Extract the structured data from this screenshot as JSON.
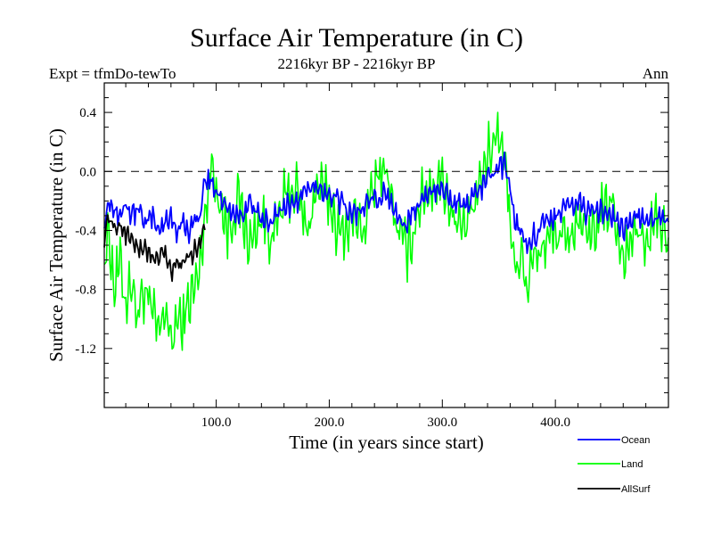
{
  "header": {
    "title": "Surface Air Temperature (in C)",
    "subtitle": "2216kyr BP - 2216kyr BP",
    "expt": "Expt = tfmDo-tewTo",
    "season": "Ann"
  },
  "chart_data": {
    "type": "line",
    "title": "Surface Air Temperature (in C)",
    "xlabel": "Time (in years since start)",
    "ylabel": "Surface Air Temperature (in C)",
    "xlim": [
      1,
      500
    ],
    "ylim": [
      -1.6,
      0.6
    ],
    "x_ticks": [
      100,
      200,
      300,
      400
    ],
    "x_tick_labels": [
      "100.0",
      "200.0",
      "300.0",
      "400.0"
    ],
    "y_ticks": [
      0.4,
      0.0,
      -0.4,
      -0.8,
      -1.2
    ],
    "y_tick_labels": [
      "0.4",
      "0.0",
      "-0.4",
      "-0.8",
      "-1.2"
    ],
    "reference_line": 0.0,
    "legend_position": "bottom-right, below plot",
    "series": [
      {
        "name": "Ocean",
        "color": "#0000ff",
        "x": [
          1,
          5,
          10,
          15,
          20,
          25,
          30,
          35,
          40,
          45,
          50,
          55,
          60,
          65,
          70,
          75,
          80,
          85,
          90,
          95,
          100,
          110,
          120,
          130,
          140,
          150,
          160,
          170,
          180,
          190,
          200,
          210,
          220,
          230,
          240,
          250,
          260,
          270,
          280,
          290,
          300,
          310,
          320,
          330,
          340,
          350,
          355,
          360,
          365,
          370,
          375,
          380,
          390,
          400,
          410,
          420,
          430,
          440,
          450,
          460,
          470,
          480,
          490,
          500
        ],
        "values": [
          -0.35,
          -0.2,
          -0.25,
          -0.3,
          -0.2,
          -0.3,
          -0.25,
          -0.3,
          -0.35,
          -0.3,
          -0.4,
          -0.35,
          -0.3,
          -0.4,
          -0.35,
          -0.4,
          -0.35,
          -0.3,
          -0.1,
          -0.05,
          -0.15,
          -0.25,
          -0.3,
          -0.2,
          -0.35,
          -0.3,
          -0.25,
          -0.2,
          -0.15,
          -0.1,
          -0.15,
          -0.2,
          -0.3,
          -0.25,
          -0.2,
          -0.15,
          -0.3,
          -0.35,
          -0.2,
          -0.15,
          -0.1,
          -0.2,
          -0.25,
          -0.15,
          -0.05,
          0.0,
          0.05,
          -0.1,
          -0.35,
          -0.4,
          -0.5,
          -0.45,
          -0.35,
          -0.3,
          -0.25,
          -0.2,
          -0.3,
          -0.25,
          -0.3,
          -0.4,
          -0.3,
          -0.35,
          -0.3,
          -0.35
        ]
      },
      {
        "name": "Land",
        "color": "#00ff00",
        "x": [
          1,
          5,
          10,
          15,
          20,
          25,
          30,
          35,
          40,
          45,
          50,
          55,
          60,
          65,
          70,
          75,
          80,
          85,
          90,
          95,
          100,
          110,
          120,
          130,
          140,
          150,
          160,
          170,
          180,
          190,
          200,
          210,
          220,
          230,
          240,
          250,
          260,
          270,
          280,
          290,
          300,
          310,
          320,
          330,
          340,
          350,
          355,
          360,
          365,
          370,
          375,
          380,
          390,
          400,
          410,
          420,
          430,
          440,
          450,
          460,
          470,
          480,
          490,
          500
        ],
        "values": [
          -0.6,
          -0.4,
          -0.8,
          -0.6,
          -0.9,
          -0.7,
          -1.0,
          -0.8,
          -0.9,
          -1.0,
          -1.1,
          -0.9,
          -1.2,
          -1.0,
          -1.05,
          -0.9,
          -0.8,
          -0.7,
          -0.3,
          0.05,
          -0.1,
          -0.4,
          -0.2,
          -0.5,
          -0.3,
          -0.45,
          -0.2,
          -0.1,
          -0.4,
          -0.1,
          -0.2,
          -0.45,
          -0.3,
          -0.4,
          -0.1,
          0.05,
          -0.4,
          -0.55,
          -0.2,
          -0.1,
          -0.05,
          -0.3,
          -0.4,
          -0.2,
          0.1,
          0.3,
          0.1,
          -0.3,
          -0.7,
          -0.5,
          -0.8,
          -0.6,
          -0.5,
          -0.4,
          -0.5,
          -0.3,
          -0.5,
          -0.3,
          -0.2,
          -0.6,
          -0.4,
          -0.5,
          -0.3,
          -0.5
        ]
      },
      {
        "name": "AllSurf",
        "color": "#000000",
        "x": [
          1,
          5,
          10,
          15,
          20,
          25,
          30,
          35,
          40,
          45,
          50,
          55,
          60,
          65,
          70,
          75,
          80,
          85,
          90
        ],
        "values": [
          -0.45,
          -0.3,
          -0.4,
          -0.35,
          -0.45,
          -0.4,
          -0.55,
          -0.5,
          -0.55,
          -0.6,
          -0.6,
          -0.55,
          -0.7,
          -0.6,
          -0.65,
          -0.6,
          -0.55,
          -0.5,
          -0.35
        ]
      }
    ]
  }
}
